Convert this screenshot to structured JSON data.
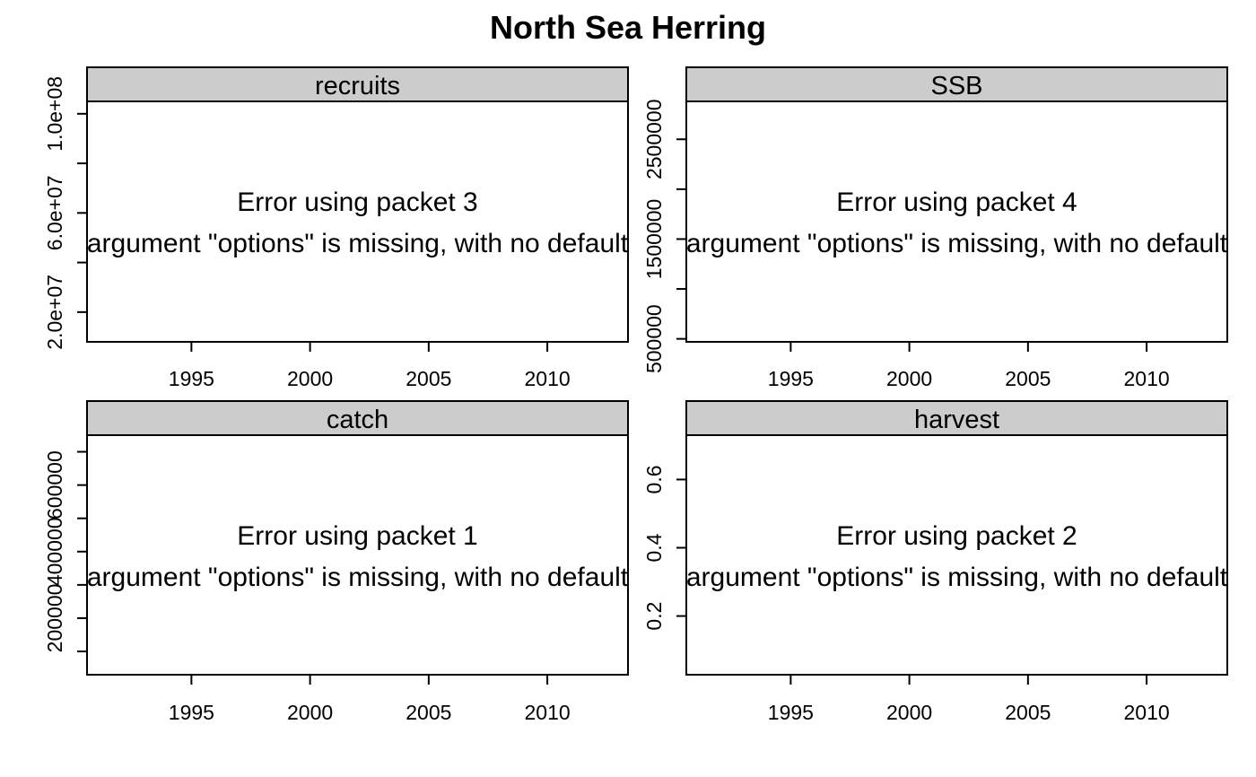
{
  "chart_data": {
    "type": "line",
    "title": "North Sea Herring",
    "xlim": [
      1990.6,
      2013.4
    ],
    "panels": [
      {
        "name": "recruits",
        "error_title": "Error using packet 3",
        "error_message": "argument \"options\" is missing, with no default",
        "x_ticks": [
          1995,
          2000,
          2005,
          2010
        ],
        "x_tick_labels": [
          "1995",
          "2000",
          "2005",
          "2010"
        ],
        "y_ticks": [
          20000000,
          40000000,
          60000000,
          80000000,
          100000000
        ],
        "y_tick_labels": [
          "2.0e+07",
          "",
          "6.0e+07",
          "",
          "1.0e+08"
        ],
        "ylim": [
          8000000,
          105000000
        ]
      },
      {
        "name": "SSB",
        "error_title": "Error using packet 4",
        "error_message": "argument \"options\" is missing, with no default",
        "x_ticks": [
          1995,
          2000,
          2005,
          2010
        ],
        "x_tick_labels": [
          "1995",
          "2000",
          "2005",
          "2010"
        ],
        "y_ticks": [
          500000,
          1000000,
          1500000,
          2000000,
          2500000
        ],
        "y_tick_labels": [
          "500000",
          "",
          "1500000",
          "",
          "2500000"
        ],
        "ylim": [
          470000,
          2880000
        ]
      },
      {
        "name": "catch",
        "error_title": "Error using packet 1",
        "error_message": "argument \"options\" is missing, with no default",
        "x_ticks": [
          1995,
          2000,
          2005,
          2010
        ],
        "x_tick_labels": [
          "1995",
          "2000",
          "2005",
          "2010"
        ],
        "y_ticks": [
          100000,
          200000,
          300000,
          400000,
          500000,
          600000,
          700000
        ],
        "y_tick_labels": [
          "",
          "200000",
          "",
          "400000",
          "",
          "600000",
          ""
        ],
        "ylim": [
          30000,
          750000
        ]
      },
      {
        "name": "harvest",
        "error_title": "Error using packet 2",
        "error_message": "argument \"options\" is missing, with no default",
        "x_ticks": [
          1995,
          2000,
          2005,
          2010
        ],
        "x_tick_labels": [
          "1995",
          "2000",
          "2005",
          "2010"
        ],
        "y_ticks": [
          0.2,
          0.4,
          0.6
        ],
        "y_tick_labels": [
          "0.2",
          "0.4",
          "0.6"
        ],
        "ylim": [
          0.028,
          0.73
        ]
      }
    ]
  }
}
